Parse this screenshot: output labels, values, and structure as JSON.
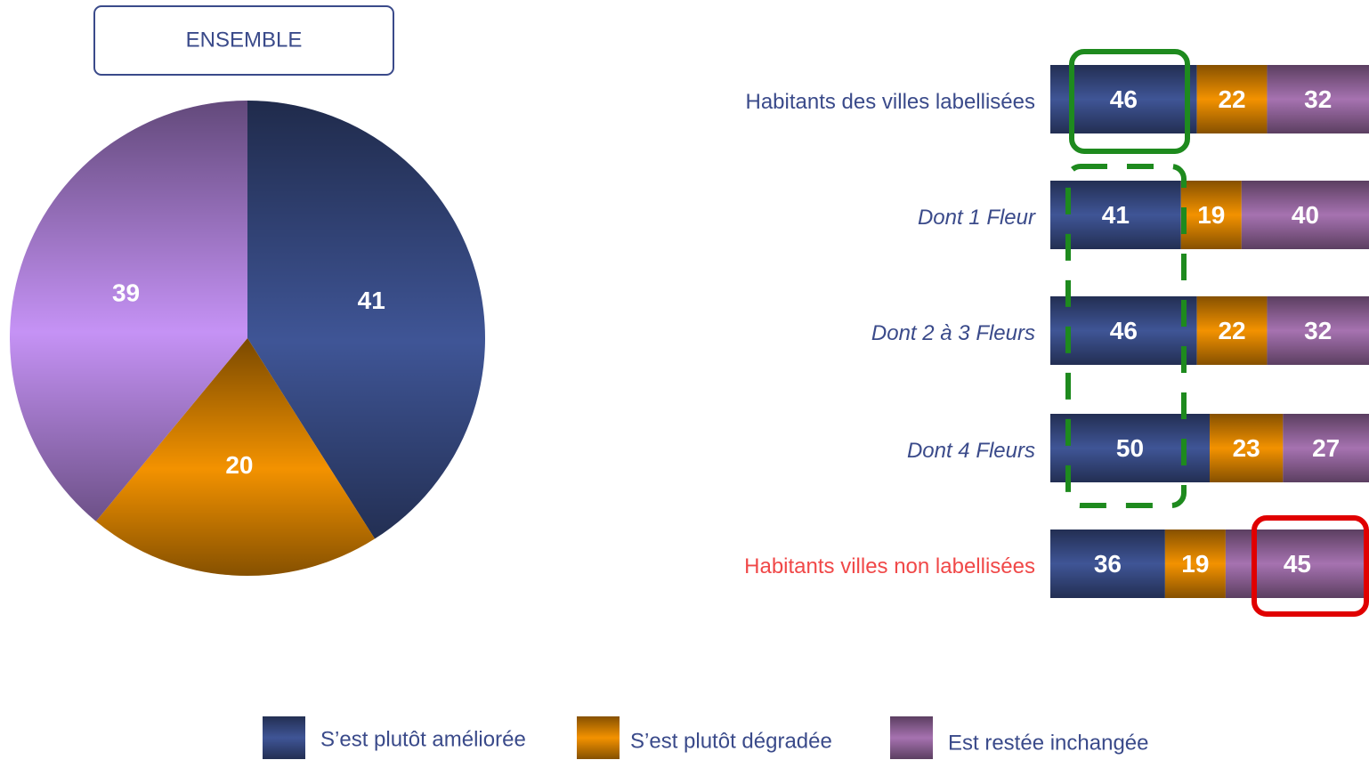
{
  "chart_data": [
    {
      "type": "pie",
      "title": "ENSEMBLE",
      "values": [
        41,
        20,
        39
      ],
      "colors": [
        "#3f5596",
        "#f39200",
        "#c592f5"
      ]
    },
    {
      "type": "stacked_bar",
      "categories": [
        "Habitants des villes labellisées",
        "Dont 1 Fleur",
        "Dont 2 à 3 Fleurs",
        "Dont 4 Fleurs",
        "Habitants villes non  labellisées"
      ],
      "series": [
        {
          "name": "S’est plutôt améliorée",
          "color": "#3f5596",
          "values": [
            46,
            41,
            46,
            50,
            36
          ]
        },
        {
          "name": "S’est plutôt dégradée",
          "color": "#f39200",
          "values": [
            22,
            19,
            22,
            23,
            19
          ]
        },
        {
          "name": "Est restée inchangée",
          "color": "#a672b0",
          "values": [
            32,
            40,
            32,
            27,
            45
          ]
        }
      ],
      "xlim": [
        0,
        100
      ]
    }
  ]
}
